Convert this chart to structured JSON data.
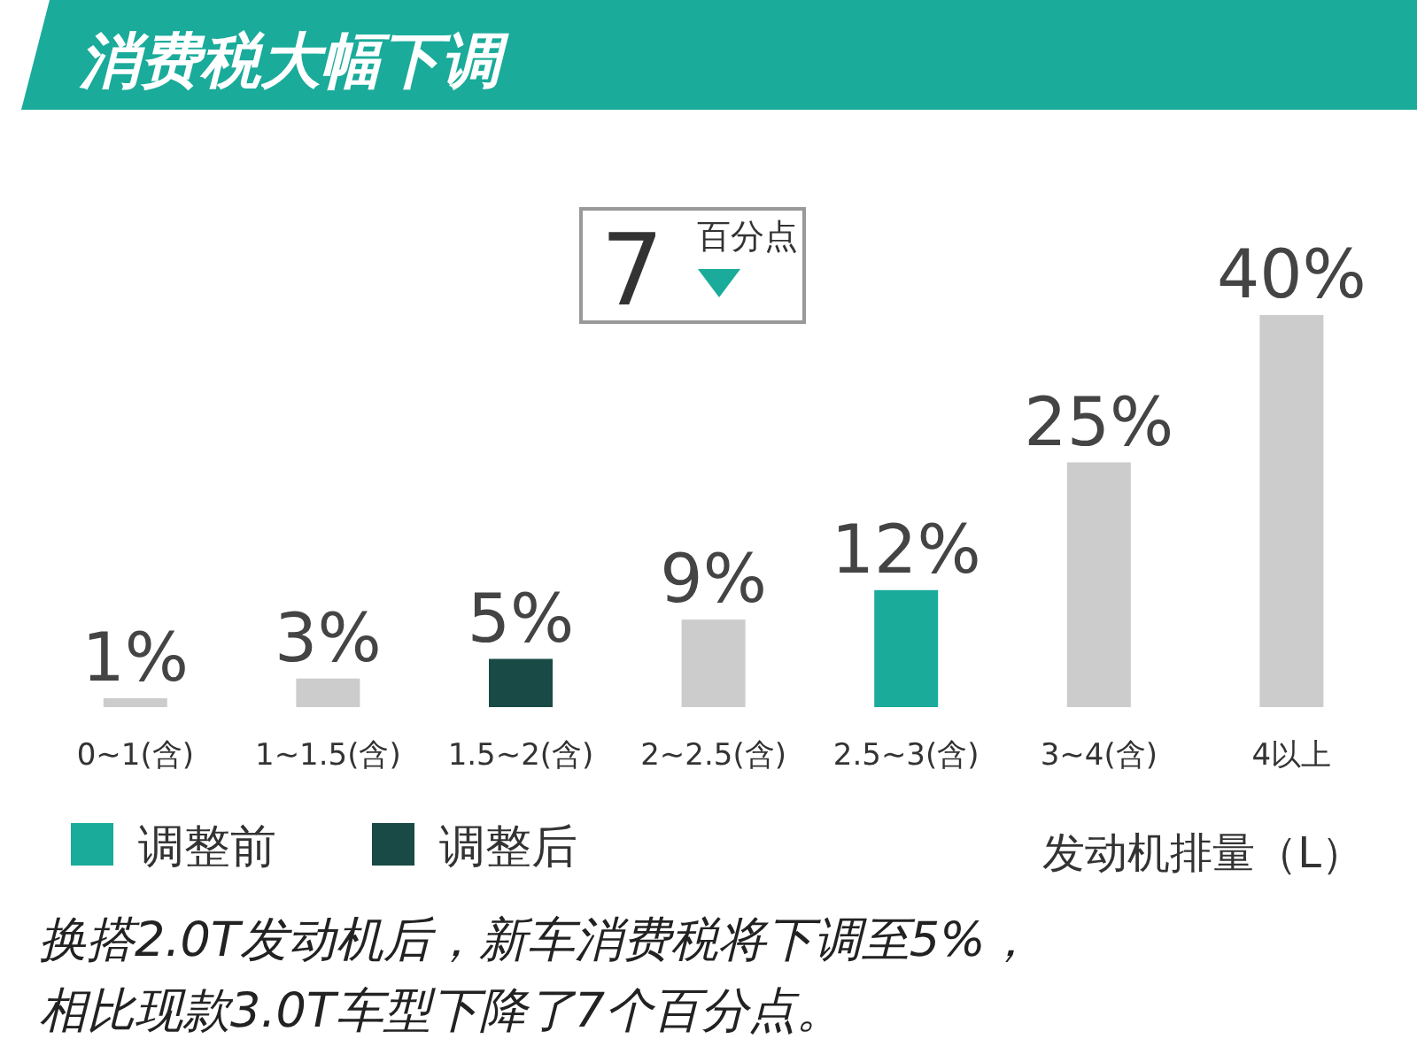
{
  "chart_data": {
    "type": "bar",
    "title": "消费税大幅下调",
    "xlabel": "发动机排量（L）",
    "legend": "bottom left",
    "categories": [
      "0~1(含)",
      "1~1.5(含)",
      "1.5~2(含)",
      "2~2.5(含)",
      "2.5~3(含)",
      "3~4(含)",
      "4以上"
    ],
    "series": [
      {
        "color": "#cccccc",
        "values": [
          1,
          3,
          null,
          9,
          null,
          25,
          40
        ],
        "value_labels": [
          "1%",
          "3%",
          null,
          "9%",
          null,
          "25%",
          "40%"
        ]
      },
      {
        "name": "调整前",
        "color": "#1aab9a",
        "values": [
          null,
          null,
          null,
          null,
          12,
          null,
          null
        ],
        "value_labels": [
          null,
          null,
          null,
          null,
          "12%",
          null,
          null
        ]
      },
      {
        "name": "调整后",
        "color": "#1a4a45",
        "values": [
          null,
          null,
          5,
          null,
          null,
          null,
          null
        ],
        "value_labels": [
          null,
          null,
          "5%",
          null,
          null,
          null,
          null
        ]
      }
    ],
    "annotations": [
      "7",
      "百分点",
      "换搭2.0T发动机后，新车消费税将下调至5%，相比现款3.0T车型下降了7个百分点。"
    ]
  }
}
